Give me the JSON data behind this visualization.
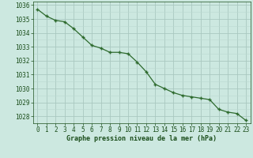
{
  "hours": [
    0,
    1,
    2,
    3,
    4,
    5,
    6,
    7,
    8,
    9,
    10,
    11,
    12,
    13,
    14,
    15,
    16,
    17,
    18,
    19,
    20,
    21,
    22,
    23
  ],
  "pressures": [
    1035.7,
    1035.2,
    1034.9,
    1034.8,
    1034.3,
    1033.7,
    1033.1,
    1032.9,
    1032.6,
    1032.6,
    1032.5,
    1031.9,
    1031.2,
    1030.3,
    1030.0,
    1029.7,
    1029.5,
    1029.4,
    1029.3,
    1029.2,
    1028.5,
    1028.3,
    1028.2,
    1027.7
  ],
  "line_color": "#2d6a2d",
  "marker_color": "#2d6a2d",
  "bg_color": "#cce8e0",
  "grid_color_major": "#aac8c0",
  "grid_color_minor": "#bbd8d0",
  "xlabel": "Graphe pression niveau de la mer (hPa)",
  "xlabel_color": "#1a4d1a",
  "tick_color": "#1a4d1a",
  "ylim": [
    1027.5,
    1036.25
  ],
  "yticks": [
    1028,
    1029,
    1030,
    1031,
    1032,
    1033,
    1034,
    1035,
    1036
  ],
  "xticks": [
    0,
    1,
    2,
    3,
    4,
    5,
    6,
    7,
    8,
    9,
    10,
    11,
    12,
    13,
    14,
    15,
    16,
    17,
    18,
    19,
    20,
    21,
    22,
    23
  ],
  "font_family": "monospace"
}
